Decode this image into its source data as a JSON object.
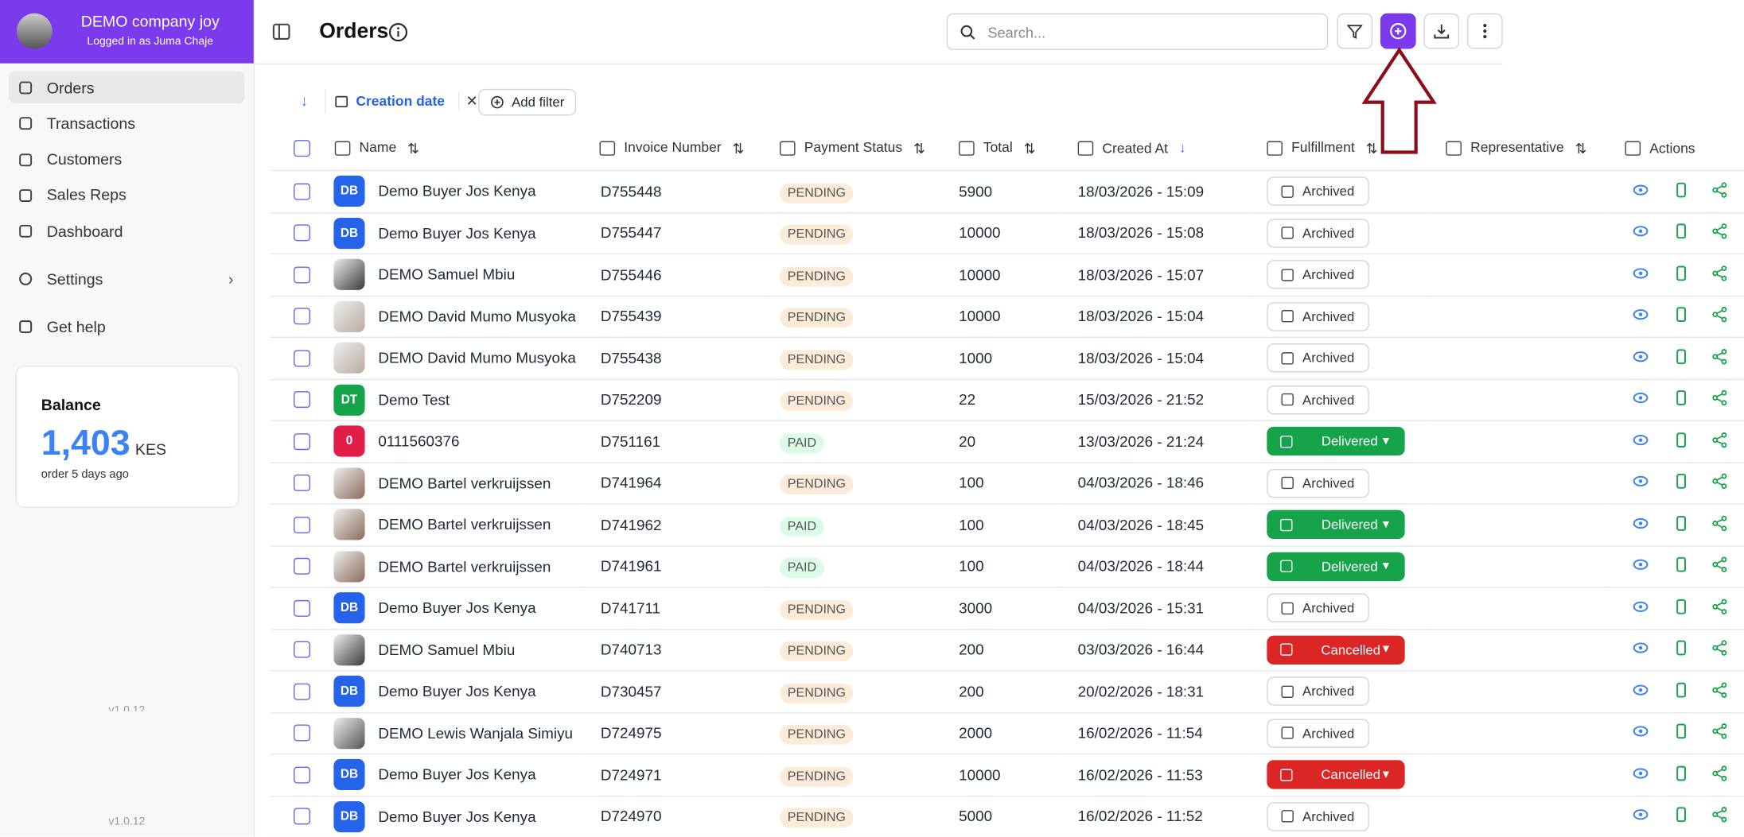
{
  "sidebar": {
    "company": "DEMO company joy",
    "logged_in": "Logged in as Juma Chaje",
    "nav": [
      "Orders",
      "Transactions",
      "Customers",
      "Sales Reps",
      "Dashboard"
    ],
    "settings": "Settings",
    "help": "Get help",
    "balance": {
      "title": "Balance",
      "amount": "1,403",
      "currency": "KES",
      "note": "order 5 days ago"
    },
    "version_ghost": "v1.0.12",
    "version": "v1.0.12"
  },
  "header": {
    "title": "Orders",
    "search_placeholder": "Search..."
  },
  "filters": {
    "active": "Creation date",
    "add": "Add filter"
  },
  "table": {
    "columns": [
      "Name",
      "Invoice Number",
      "Payment Status",
      "Total",
      "Created At",
      "Fulfillment",
      "Representative",
      "Actions"
    ],
    "rows": [
      {
        "avatar": "DB",
        "avatar_color": "#2563eb",
        "name": "Demo Buyer Jos Kenya",
        "invoice": "D755448",
        "status": "PENDING",
        "status_color": "#fdebd9",
        "total": "5900",
        "created": "18/03/2026 - 15:09",
        "fulfillment": "Archived",
        "fulfillment_color": null
      },
      {
        "avatar": "DB",
        "avatar_color": "#2563eb",
        "name": "Demo Buyer Jos Kenya",
        "invoice": "D755447",
        "status": "PENDING",
        "status_color": "#fdebd9",
        "total": "10000",
        "created": "18/03/2026 - 15:08",
        "fulfillment": "Archived",
        "fulfillment_color": null
      },
      {
        "avatar": null,
        "avatar_color": "#3a3a3a",
        "name": "DEMO Samuel Mbiu",
        "invoice": "D755446",
        "status": "PENDING",
        "status_color": "#fdebd9",
        "total": "10000",
        "created": "18/03/2026 - 15:07",
        "fulfillment": "Archived",
        "fulfillment_color": null
      },
      {
        "avatar": null,
        "avatar_color": "#b8aca2",
        "name": "DEMO David Mumo Musyoka",
        "invoice": "D755439",
        "status": "PENDING",
        "status_color": "#fdebd9",
        "total": "10000",
        "created": "18/03/2026 - 15:04",
        "fulfillment": "Archived",
        "fulfillment_color": null
      },
      {
        "avatar": null,
        "avatar_color": "#b8aca2",
        "name": "DEMO David Mumo Musyoka",
        "invoice": "D755438",
        "status": "PENDING",
        "status_color": "#fdebd9",
        "total": "1000",
        "created": "18/03/2026 - 15:04",
        "fulfillment": "Archived",
        "fulfillment_color": null
      },
      {
        "avatar": "DT",
        "avatar_color": "#16a34a",
        "name": "Demo Test",
        "invoice": "D752209",
        "status": "PENDING",
        "status_color": "#fdebd9",
        "total": "22",
        "created": "15/03/2026 - 21:52",
        "fulfillment": "Archived",
        "fulfillment_color": null
      },
      {
        "avatar": "0",
        "avatar_color": "#e11d48",
        "name": "0111560376",
        "invoice": "D751161",
        "status": "PAID",
        "status_color": "#dcfce7",
        "total": "20",
        "created": "13/03/2026 - 21:24",
        "fulfillment": "Delivered",
        "fulfillment_color": "#16a34a"
      },
      {
        "avatar": null,
        "avatar_color": "#8a6d5a",
        "name": "DEMO Bartel verkruijssen",
        "invoice": "D741964",
        "status": "PENDING",
        "status_color": "#fdebd9",
        "total": "100",
        "created": "04/03/2026 - 18:46",
        "fulfillment": "Archived",
        "fulfillment_color": null
      },
      {
        "avatar": null,
        "avatar_color": "#8a6d5a",
        "name": "DEMO Bartel verkruijssen",
        "invoice": "D741962",
        "status": "PAID",
        "status_color": "#dcfce7",
        "total": "100",
        "created": "04/03/2026 - 18:45",
        "fulfillment": "Delivered",
        "fulfillment_color": "#16a34a"
      },
      {
        "avatar": null,
        "avatar_color": "#8a6d5a",
        "name": "DEMO Bartel verkruijssen",
        "invoice": "D741961",
        "status": "PAID",
        "status_color": "#dcfce7",
        "total": "100",
        "created": "04/03/2026 - 18:44",
        "fulfillment": "Delivered",
        "fulfillment_color": "#16a34a"
      },
      {
        "avatar": "DB",
        "avatar_color": "#2563eb",
        "name": "Demo Buyer Jos Kenya",
        "invoice": "D741711",
        "status": "PENDING",
        "status_color": "#fdebd9",
        "total": "3000",
        "created": "04/03/2026 - 15:31",
        "fulfillment": "Archived",
        "fulfillment_color": null
      },
      {
        "avatar": null,
        "avatar_color": "#3a3a3a",
        "name": "DEMO Samuel Mbiu",
        "invoice": "D740713",
        "status": "PENDING",
        "status_color": "#fdebd9",
        "total": "200",
        "created": "03/03/2026 - 16:44",
        "fulfillment": "Cancelled",
        "fulfillment_color": "#dc2626"
      },
      {
        "avatar": "DB",
        "avatar_color": "#2563eb",
        "name": "Demo Buyer Jos Kenya",
        "invoice": "D730457",
        "status": "PENDING",
        "status_color": "#fdebd9",
        "total": "200",
        "created": "20/02/2026 - 18:31",
        "fulfillment": "Archived",
        "fulfillment_color": null
      },
      {
        "avatar": null,
        "avatar_color": "#555555",
        "name": "DEMO Lewis Wanjala Simiyu",
        "invoice": "D724975",
        "status": "PENDING",
        "status_color": "#fdebd9",
        "total": "2000",
        "created": "16/02/2026 - 11:54",
        "fulfillment": "Archived",
        "fulfillment_color": null
      },
      {
        "avatar": "DB",
        "avatar_color": "#2563eb",
        "name": "Demo Buyer Jos Kenya",
        "invoice": "D724971",
        "status": "PENDING",
        "status_color": "#fdebd9",
        "total": "10000",
        "created": "16/02/2026 - 11:53",
        "fulfillment": "Cancelled",
        "fulfillment_color": "#dc2626"
      },
      {
        "avatar": "DB",
        "avatar_color": "#2563eb",
        "name": "Demo Buyer Jos Kenya",
        "invoice": "D724970",
        "status": "PENDING",
        "status_color": "#fdebd9",
        "total": "5000",
        "created": "16/02/2026 - 11:52",
        "fulfillment": "Archived",
        "fulfillment_color": null
      }
    ]
  }
}
